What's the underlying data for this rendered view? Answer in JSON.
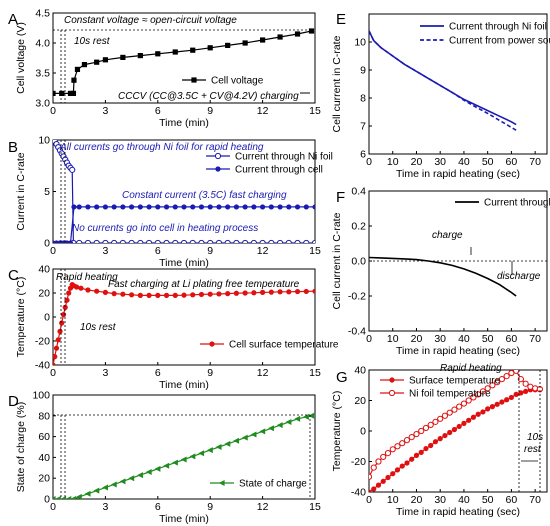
{
  "chart_data": [
    {
      "id": "A",
      "type": "line",
      "panel_label": "A",
      "xlabel": "Time (min)",
      "ylabel": "Cell voltage (V)",
      "xlim": [
        0,
        15
      ],
      "ylim": [
        3.0,
        4.5
      ],
      "xticks": [
        "0",
        "3",
        "6",
        "9",
        "12",
        "15"
      ],
      "yticks": [
        "3.0",
        "3.5",
        "4.0",
        "4.5"
      ],
      "legend_position": "right",
      "annotations": [
        "Constant voltage ≈ open-circuit voltage",
        "10s rest",
        "CCCV (CC@3.5C + CV@4.2V) charging"
      ],
      "series": [
        {
          "name": "Cell voltage",
          "color": "#000000",
          "marker": "square",
          "x": [
            0,
            0.5,
            1.0,
            1.17,
            1.2,
            1.4,
            1.8,
            2.5,
            3,
            4,
            5,
            6,
            7,
            8,
            9,
            10,
            11,
            12,
            13,
            14,
            14.8
          ],
          "y": [
            3.16,
            3.16,
            3.16,
            3.16,
            3.38,
            3.56,
            3.64,
            3.68,
            3.72,
            3.76,
            3.79,
            3.82,
            3.85,
            3.88,
            3.92,
            3.96,
            4.0,
            4.05,
            4.1,
            4.15,
            4.2
          ]
        }
      ]
    },
    {
      "id": "B",
      "type": "line",
      "panel_label": "B",
      "xlabel": "Time (min)",
      "ylabel": "Current in C-rate",
      "xlim": [
        0,
        15
      ],
      "ylim": [
        0,
        10
      ],
      "xticks": [
        "0",
        "3",
        "6",
        "9",
        "12",
        "15"
      ],
      "yticks": [
        "0",
        "5",
        "10"
      ],
      "legend_position": "top-right",
      "annotations": [
        "All currents go through Ni foil for rapid heating",
        "Constant current (3.5C) fast charging",
        "No currents go into cell in heating process"
      ],
      "series": [
        {
          "name": "Current through Ni foil",
          "color": "#1b1bb4",
          "marker": "open-circle",
          "x": [
            0,
            0.1,
            0.2,
            0.3,
            0.4,
            0.5,
            0.6,
            0.7,
            0.8,
            0.9,
            1.0,
            1.1,
            1.17,
            1.5,
            2,
            2.5,
            3,
            3.5,
            4,
            4.5,
            5,
            5.5,
            6,
            6.5,
            7,
            7.5,
            8,
            8.5,
            9,
            9.5,
            10,
            10.5,
            11,
            11.5,
            12,
            12.5,
            13,
            13.5,
            14,
            14.5,
            15
          ],
          "y": [
            10.2,
            9.9,
            9.6,
            9.3,
            9.0,
            8.7,
            8.4,
            8.1,
            7.8,
            7.5,
            7.3,
            7.1,
            0,
            0,
            0,
            0,
            0,
            0,
            0,
            0,
            0,
            0,
            0,
            0,
            0,
            0,
            0,
            0,
            0,
            0,
            0,
            0,
            0,
            0,
            0,
            0,
            0,
            0,
            0,
            0,
            0
          ]
        },
        {
          "name": "Current through cell",
          "color": "#1b1bb4",
          "marker": "filled-circle",
          "x": [
            0,
            0.2,
            0.4,
            0.6,
            0.8,
            1.0,
            1.2,
            1.5,
            2,
            2.5,
            3,
            3.5,
            4,
            4.5,
            5,
            5.5,
            6,
            6.5,
            7,
            7.5,
            8,
            8.5,
            9,
            9.5,
            10,
            10.5,
            11,
            11.5,
            12,
            12.5,
            13,
            13.5,
            14,
            14.5,
            15
          ],
          "y": [
            0,
            0,
            0,
            0,
            0,
            0,
            3.5,
            3.5,
            3.5,
            3.5,
            3.5,
            3.5,
            3.5,
            3.5,
            3.5,
            3.5,
            3.5,
            3.5,
            3.5,
            3.5,
            3.5,
            3.5,
            3.5,
            3.5,
            3.5,
            3.5,
            3.5,
            3.5,
            3.5,
            3.5,
            3.5,
            3.5,
            3.5,
            3.5,
            3.5
          ]
        }
      ]
    },
    {
      "id": "C",
      "type": "line",
      "panel_label": "C",
      "xlabel": "Time (min)",
      "ylabel": "Temperature (°C)",
      "xlim": [
        0,
        15
      ],
      "ylim": [
        -40,
        40
      ],
      "xticks": [
        "0",
        "3",
        "6",
        "9",
        "12",
        "15"
      ],
      "yticks": [
        "-40",
        "-20",
        "0",
        "20",
        "40"
      ],
      "legend_position": "bottom-right",
      "annotations": [
        "Rapid heating",
        "Fast charging at Li plating free temperature",
        "10s rest"
      ],
      "series": [
        {
          "name": "Cell surface temperature",
          "color": "#e01010",
          "marker": "filled-circle",
          "x": [
            0,
            0.1,
            0.2,
            0.3,
            0.4,
            0.5,
            0.6,
            0.7,
            0.8,
            0.9,
            1.0,
            1.1,
            1.2,
            1.35,
            1.6,
            2,
            2.5,
            3,
            3.5,
            4,
            4.5,
            5,
            5.5,
            6,
            6.5,
            7,
            7.5,
            8,
            8.5,
            9,
            9.5,
            10,
            10.5,
            11,
            11.5,
            12,
            12.5,
            13,
            13.5,
            14,
            14.5,
            15
          ],
          "y": [
            -40,
            -33,
            -26,
            -19,
            -12,
            -5,
            2,
            8,
            14,
            20,
            24,
            27,
            26,
            25,
            24,
            22.5,
            21.5,
            20.5,
            19.5,
            19,
            18.5,
            18,
            18,
            18,
            18,
            18,
            18.2,
            18.5,
            18.8,
            19,
            19.2,
            19.5,
            19.8,
            20,
            20.2,
            20.5,
            20.7,
            21,
            21,
            21.2,
            21.3,
            21.5
          ]
        }
      ]
    },
    {
      "id": "D",
      "type": "line",
      "panel_label": "D",
      "xlabel": "Time (min)",
      "ylabel": "State of charge (%)",
      "xlim": [
        0,
        15
      ],
      "ylim": [
        0,
        100
      ],
      "xticks": [
        "0",
        "3",
        "6",
        "9",
        "12",
        "15"
      ],
      "yticks": [
        "0",
        "20",
        "40",
        "60",
        "80",
        "100"
      ],
      "legend_position": "bottom-right",
      "annotations": [],
      "series": [
        {
          "name": "State of charge",
          "color": "#1e8c1e",
          "marker": "triangle-left",
          "x": [
            0,
            0.3,
            0.6,
            0.9,
            1.17,
            1.5,
            2,
            2.5,
            3,
            3.5,
            4,
            4.5,
            5,
            5.5,
            6,
            6.5,
            7,
            7.5,
            8,
            8.5,
            9,
            9.5,
            10,
            10.5,
            11,
            11.5,
            12,
            12.5,
            13,
            13.5,
            14,
            14.5,
            14.8
          ],
          "y": [
            0,
            0,
            0,
            0,
            0,
            2.0,
            5.0,
            8.0,
            11.0,
            14.0,
            17.0,
            20.0,
            23.0,
            26.0,
            29.0,
            32.0,
            35.0,
            38.0,
            41.0,
            44.0,
            47.0,
            50.0,
            53.0,
            56.0,
            59.0,
            62.0,
            65.0,
            68.0,
            71.0,
            74.0,
            77.0,
            79.0,
            80.0
          ]
        }
      ]
    },
    {
      "id": "E",
      "type": "line",
      "panel_label": "E",
      "xlabel": "Time in rapid heating (sec)",
      "ylabel": "Cell current in C-rate",
      "xlim": [
        0,
        75
      ],
      "ylim": [
        6,
        11
      ],
      "xticks": [
        "0",
        "10",
        "20",
        "30",
        "40",
        "50",
        "60",
        "70"
      ],
      "yticks": [
        "6",
        "7",
        "8",
        "9",
        "10"
      ],
      "legend_position": "top-right",
      "annotations": [],
      "series": [
        {
          "name": "Current through Ni foil",
          "color": "#1b1bb4",
          "style": "solid",
          "x": [
            0,
            2,
            5,
            10,
            15,
            20,
            25,
            30,
            35,
            40,
            45,
            50,
            55,
            60,
            62
          ],
          "y": [
            10.4,
            10.05,
            9.8,
            9.5,
            9.2,
            8.95,
            8.7,
            8.45,
            8.2,
            7.95,
            7.75,
            7.55,
            7.35,
            7.15,
            7.05
          ]
        },
        {
          "name": "Current from power source",
          "color": "#1b1bb4",
          "style": "dashed",
          "x": [
            0,
            2,
            5,
            10,
            15,
            20,
            25,
            30,
            35,
            40,
            45,
            50,
            55,
            60,
            62
          ],
          "y": [
            10.4,
            10.05,
            9.8,
            9.5,
            9.2,
            8.95,
            8.7,
            8.45,
            8.2,
            7.92,
            7.68,
            7.45,
            7.2,
            6.95,
            6.85
          ]
        }
      ]
    },
    {
      "id": "F",
      "type": "line",
      "panel_label": "F",
      "xlabel": "Time in rapid heating (sec)",
      "ylabel": "Cell current in C-rate",
      "xlim": [
        0,
        75
      ],
      "ylim": [
        -0.4,
        0.4
      ],
      "xticks": [
        "0",
        "10",
        "20",
        "30",
        "40",
        "50",
        "60",
        "70"
      ],
      "yticks": [
        "-0.4",
        "-0.2",
        "0.0",
        "0.2",
        "0.4"
      ],
      "legend_position": "top-right",
      "annotations": [
        "charge",
        "discharge"
      ],
      "series": [
        {
          "name": "Current through cell",
          "color": "#000000",
          "style": "solid",
          "x": [
            0,
            5,
            10,
            15,
            20,
            25,
            30,
            35,
            40,
            45,
            50,
            55,
            60,
            62
          ],
          "y": [
            0.02,
            0.018,
            0.015,
            0.012,
            0.008,
            0.0,
            -0.01,
            -0.025,
            -0.045,
            -0.07,
            -0.1,
            -0.135,
            -0.18,
            -0.2
          ]
        }
      ]
    },
    {
      "id": "G",
      "type": "line",
      "panel_label": "G",
      "xlabel": "Time in rapid heating (sec)",
      "ylabel": "Temperature (°C)",
      "xlim": [
        0,
        75
      ],
      "ylim": [
        -40,
        40
      ],
      "xticks": [
        "0",
        "10",
        "20",
        "30",
        "40",
        "50",
        "60",
        "70"
      ],
      "yticks": [
        "-40",
        "-20",
        "0",
        "20",
        "40"
      ],
      "legend_position": "top-left",
      "annotations": [
        "Rapid heating",
        "10s rest"
      ],
      "series": [
        {
          "name": "Surface temperature",
          "color": "#e01010",
          "marker": "filled-circle",
          "x": [
            0,
            2,
            4,
            6,
            8,
            10,
            12,
            14,
            16,
            18,
            20,
            22,
            24,
            26,
            28,
            30,
            32,
            34,
            36,
            38,
            40,
            42,
            44,
            46,
            48,
            50,
            52,
            54,
            56,
            58,
            60,
            62,
            64,
            66,
            68,
            70,
            72
          ],
          "y": [
            -40,
            -38,
            -35.5,
            -33,
            -30.5,
            -28,
            -25.5,
            -23,
            -21,
            -18.5,
            -16,
            -14,
            -11.5,
            -9.5,
            -7,
            -5,
            -3,
            -1,
            1,
            3,
            5,
            7,
            9,
            11,
            12.5,
            14.5,
            16,
            17.5,
            19,
            20.5,
            22,
            24,
            25,
            26,
            27,
            27,
            27
          ]
        },
        {
          "name": "Ni foil temperature",
          "color": "#e01010",
          "marker": "open-circle",
          "x": [
            0,
            2,
            4,
            6,
            8,
            10,
            12,
            14,
            16,
            18,
            20,
            22,
            24,
            26,
            28,
            30,
            32,
            34,
            36,
            38,
            40,
            42,
            44,
            46,
            48,
            50,
            52,
            54,
            56,
            58,
            60,
            62,
            64,
            66,
            68,
            70,
            72
          ],
          "y": [
            -30,
            -24,
            -20,
            -17,
            -14.5,
            -12,
            -10,
            -8,
            -6,
            -4,
            -2,
            0,
            2,
            4,
            6,
            8,
            10,
            12,
            14,
            16,
            18,
            20,
            22,
            24,
            26,
            28,
            30,
            32,
            34,
            36,
            38,
            39.5,
            34,
            31,
            29,
            28,
            27.5
          ]
        }
      ]
    }
  ]
}
